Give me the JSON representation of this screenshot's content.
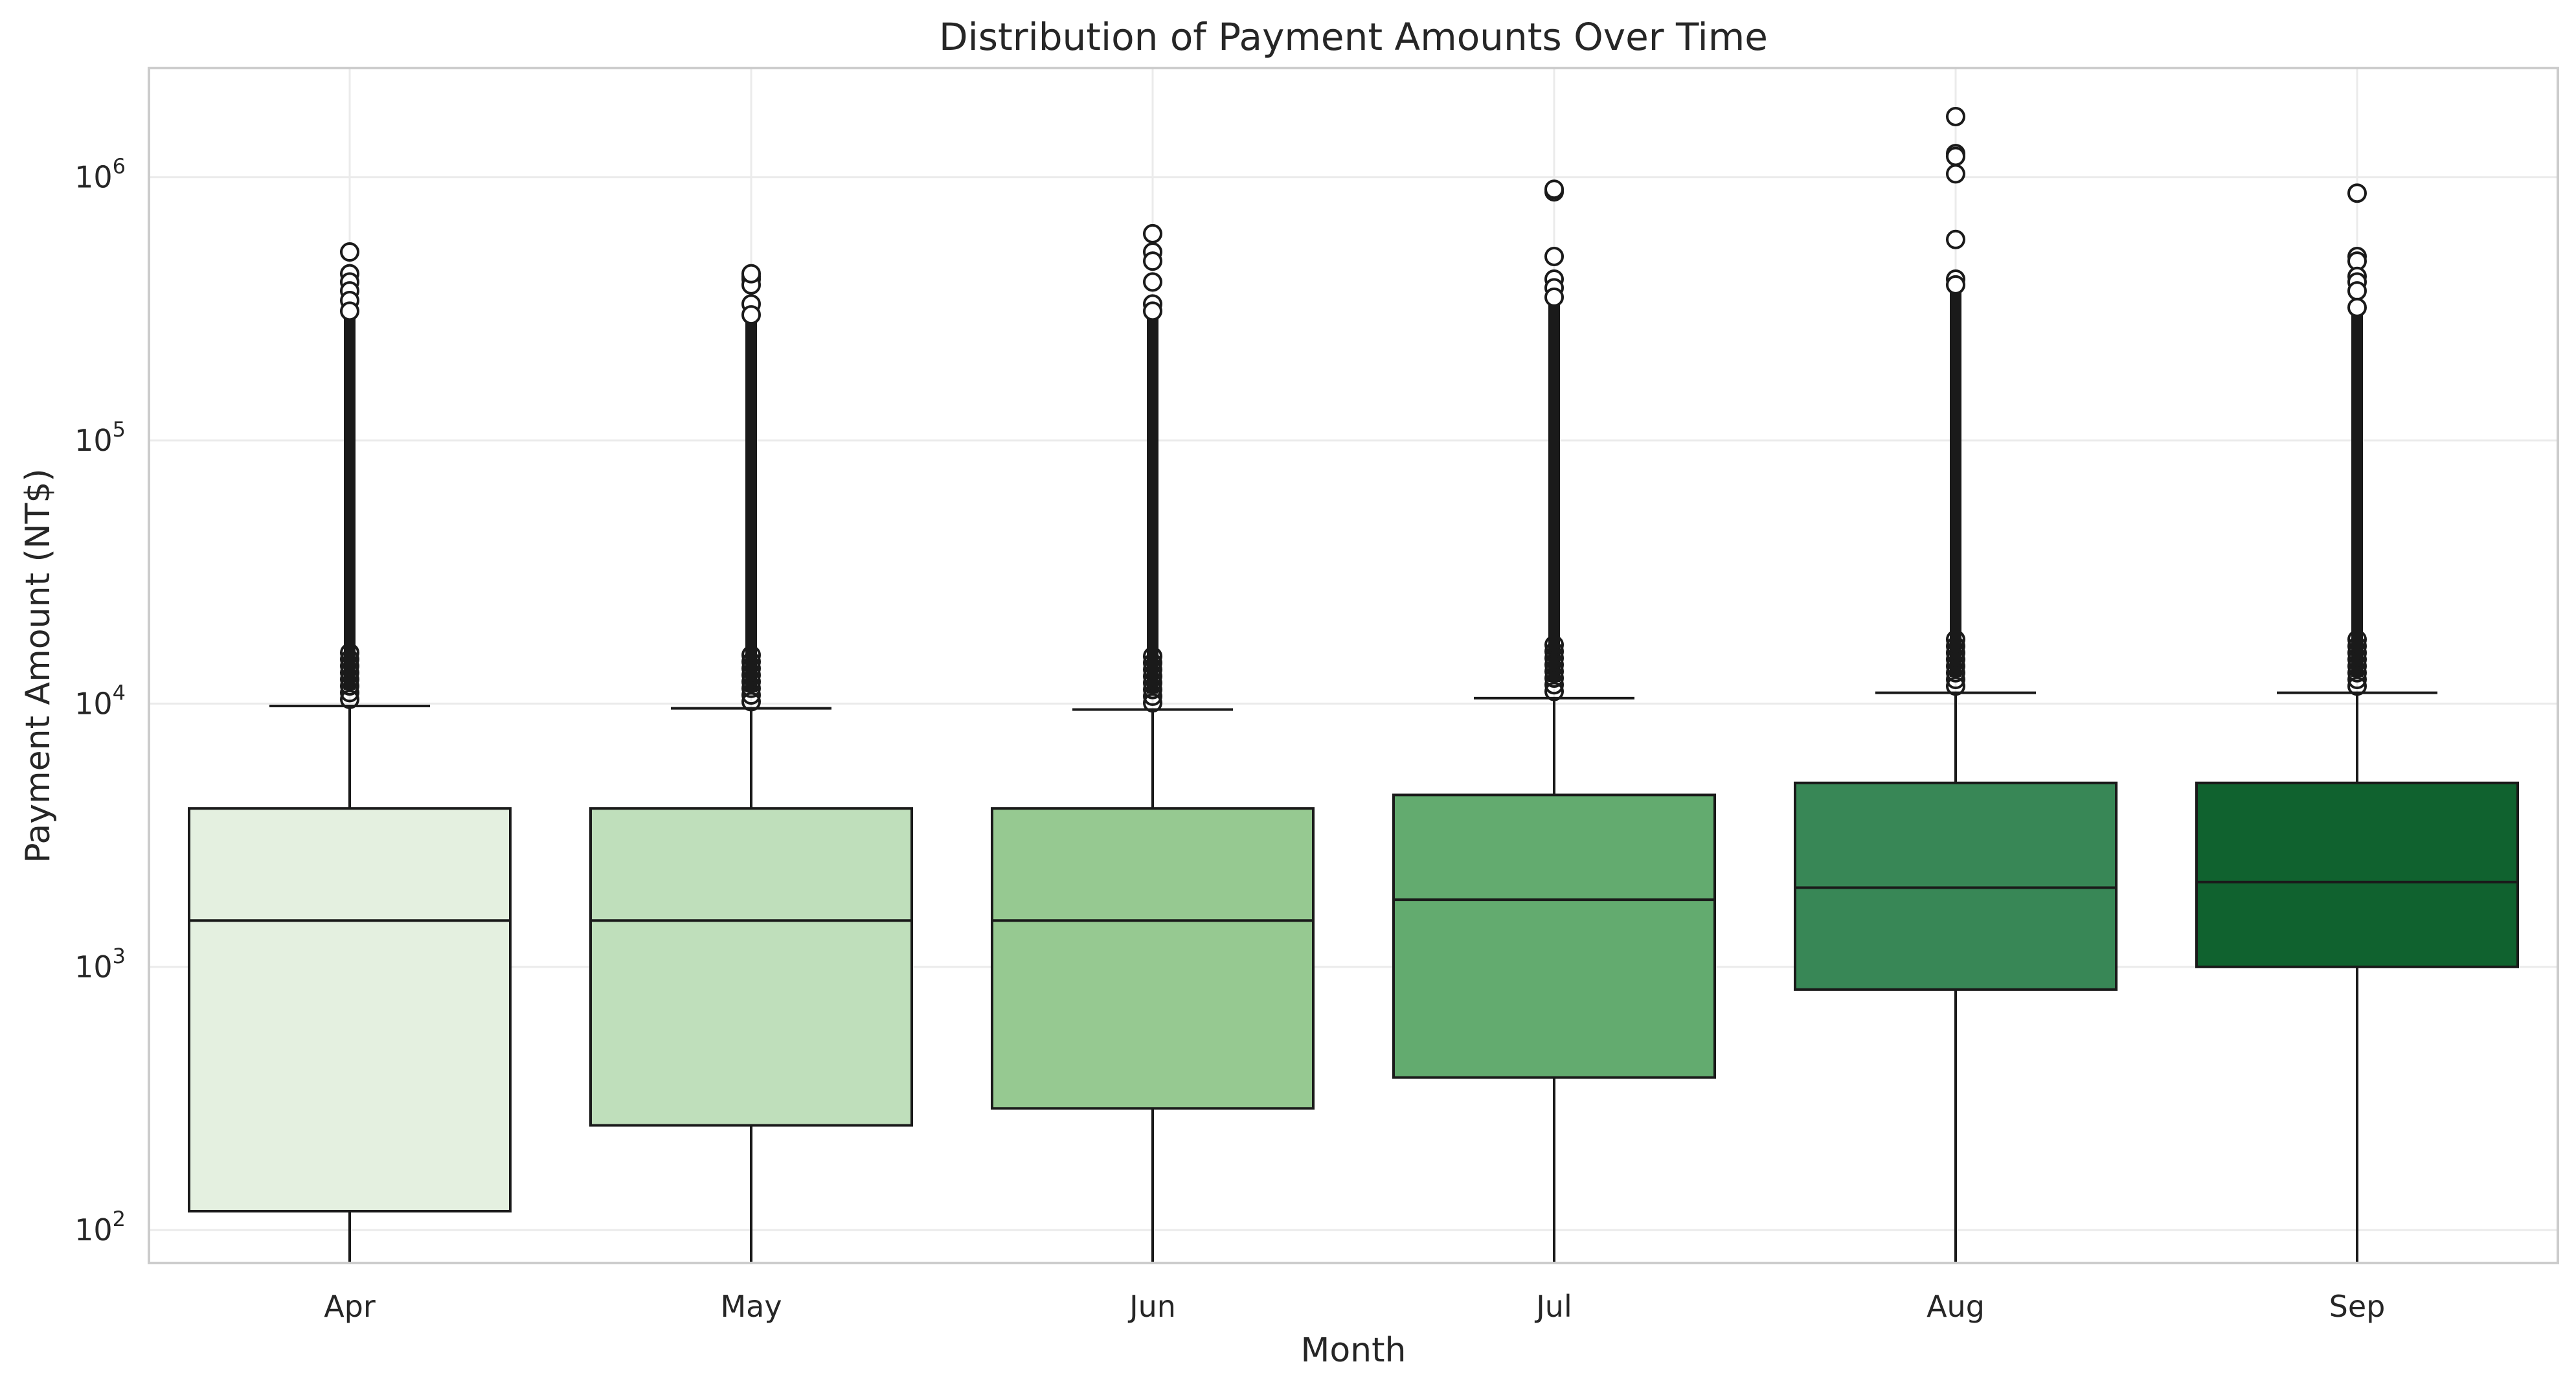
{
  "chart_data": {
    "type": "box",
    "title": "Distribution of Payment Amounts Over Time",
    "xlabel": "Month",
    "ylabel": "Payment Amount (NT$)",
    "yscale": "log",
    "ylim": [
      75,
      2600000
    ],
    "yticks": [
      {
        "value": 100,
        "base": "10",
        "exp": "2"
      },
      {
        "value": 1000,
        "base": "10",
        "exp": "3"
      },
      {
        "value": 10000,
        "base": "10",
        "exp": "4"
      },
      {
        "value": 100000,
        "base": "10",
        "exp": "5"
      },
      {
        "value": 1000000,
        "base": "10",
        "exp": "6"
      }
    ],
    "grid": true,
    "categories": [
      "Apr",
      "May",
      "Jun",
      "Jul",
      "Aug",
      "Sep"
    ],
    "colors": [
      "#e4f0e0",
      "#bfdfbb",
      "#96c991",
      "#63ab6f",
      "#388756",
      "#10622f"
    ],
    "boxes": [
      {
        "month": "Apr",
        "whisker_low": 75,
        "q1": 118,
        "median": 1500,
        "q3": 4000,
        "whisker_high": 9800,
        "outlier_top": 520000,
        "outlier_sparse": [
          430000,
          400000,
          370000,
          340000,
          310000
        ]
      },
      {
        "month": "May",
        "whisker_low": 75,
        "q1": 250,
        "median": 1500,
        "q3": 4000,
        "whisker_high": 9600,
        "outlier_top": 430000,
        "outlier_sparse": [
          420000,
          410000,
          390000,
          330000,
          300000
        ]
      },
      {
        "month": "Jun",
        "whisker_low": 75,
        "q1": 290,
        "median": 1500,
        "q3": 4000,
        "whisker_high": 9500,
        "outlier_top": 610000,
        "outlier_sparse": [
          520000,
          480000,
          400000,
          330000,
          310000
        ]
      },
      {
        "month": "Jul",
        "whisker_low": 75,
        "q1": 380,
        "median": 1800,
        "q3": 4500,
        "whisker_high": 10500,
        "outlier_top": 900000,
        "outlier_sparse": [
          880000,
          500000,
          410000,
          380000,
          350000
        ]
      },
      {
        "month": "Aug",
        "whisker_low": 75,
        "q1": 820,
        "median": 2000,
        "q3": 5000,
        "whisker_high": 11000,
        "outlier_top": 1700000,
        "outlier_sparse": [
          1230000,
          1200000,
          1030000,
          580000,
          410000,
          390000
        ]
      },
      {
        "month": "Sep",
        "whisker_low": 75,
        "q1": 1000,
        "median": 2100,
        "q3": 5000,
        "whisker_high": 11000,
        "outlier_top": 870000,
        "outlier_sparse": [
          500000,
          480000,
          420000,
          400000,
          370000,
          320000
        ]
      }
    ]
  }
}
